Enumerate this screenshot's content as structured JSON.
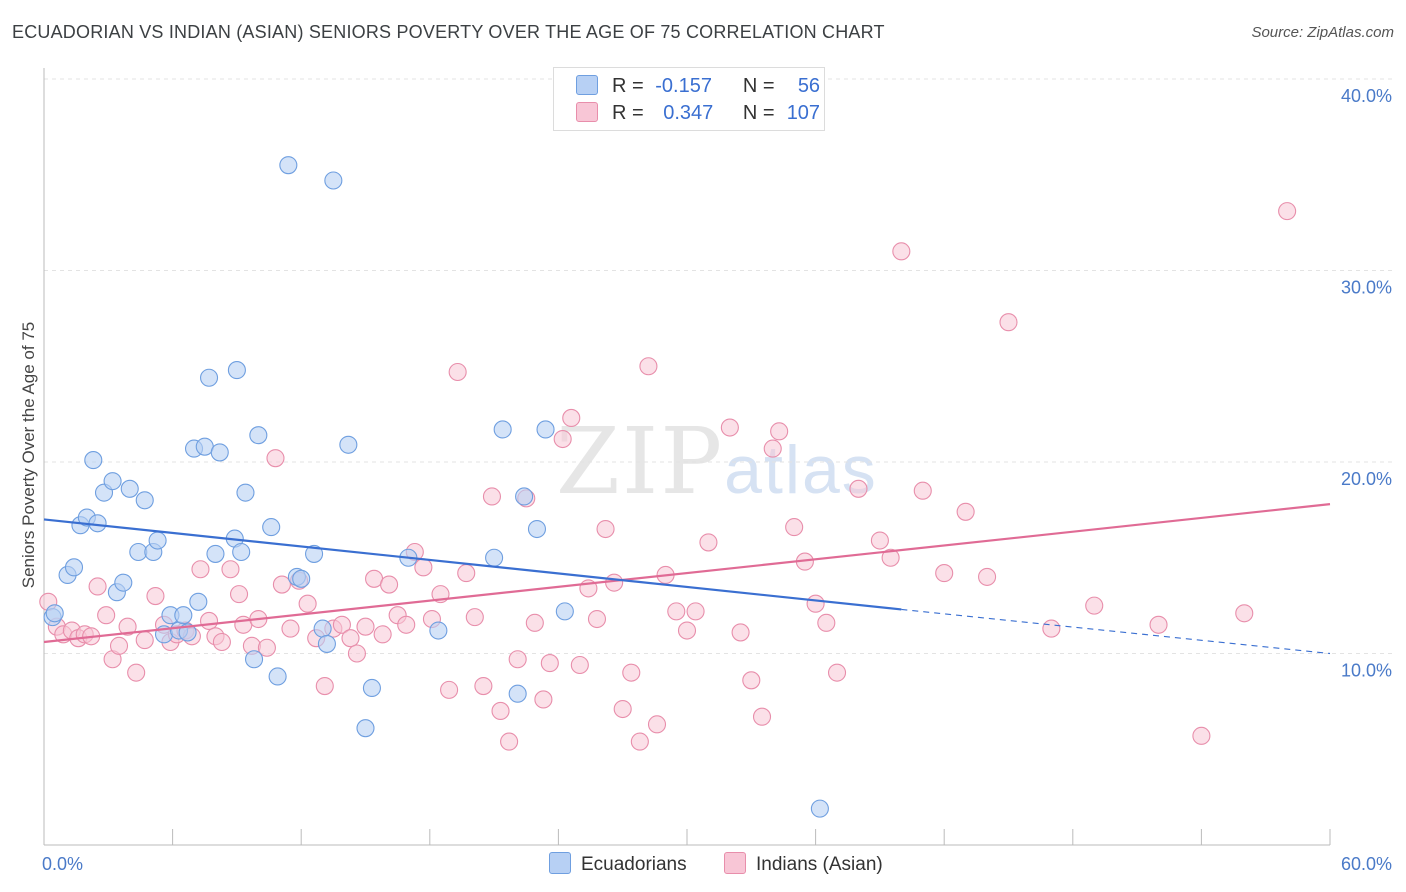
{
  "title": "ECUADORIAN VS INDIAN (ASIAN) SENIORS POVERTY OVER THE AGE OF 75 CORRELATION CHART",
  "source": "Source: ZipAtlas.com",
  "watermark": {
    "zip": "ZIP",
    "atlas": "atlas"
  },
  "legend": {
    "rows": [
      {
        "r_label": "R =",
        "r_value": "-0.157",
        "n_label": "N =",
        "n_value": "56"
      },
      {
        "r_label": "R =",
        "r_value": "0.347",
        "n_label": "N =",
        "n_value": "107"
      }
    ]
  },
  "bottom_legend": [
    "Ecuadorians",
    "Indians (Asian)"
  ],
  "colors": {
    "ecuadorian_fill": "#b7d0f4",
    "ecuadorian_stroke": "#6f9fe0",
    "ecuadorian_line": "#3a6fd1",
    "indian_fill": "#f8c6d6",
    "indian_stroke": "#e88eab",
    "indian_line": "#e06b95",
    "tick": "#4a7ac8"
  },
  "chart_data": {
    "type": "scatter",
    "title": "ECUADORIAN VS INDIAN (ASIAN) SENIORS POVERTY OVER THE AGE OF 75 CORRELATION CHART",
    "xlabel": "",
    "ylabel": "Seniors Poverty Over the Age of 75",
    "xlim": [
      0,
      60
    ],
    "ylim": [
      0,
      40
    ],
    "x_tick_labels": [
      "0.0%",
      "60.0%"
    ],
    "y_ticks": [
      10,
      20,
      30,
      40
    ],
    "y_tick_labels": [
      "10.0%",
      "20.0%",
      "30.0%",
      "40.0%"
    ],
    "grid": "horizontal dashed",
    "legend_placement": "top-center",
    "series": [
      {
        "name": "Ecuadorians",
        "r": -0.157,
        "n": 56,
        "trend": {
          "x": [
            0,
            40
          ],
          "y": [
            17.0,
            12.3
          ]
        },
        "trend_extension": {
          "x": [
            40,
            60
          ],
          "y": [
            12.3,
            10.0
          ]
        },
        "points": [
          [
            0.4,
            11.9
          ],
          [
            0.5,
            12.1
          ],
          [
            1.1,
            14.1
          ],
          [
            1.4,
            14.5
          ],
          [
            1.7,
            16.7
          ],
          [
            2.0,
            17.1
          ],
          [
            2.3,
            20.1
          ],
          [
            2.5,
            16.8
          ],
          [
            2.8,
            18.4
          ],
          [
            3.2,
            19.0
          ],
          [
            3.4,
            13.2
          ],
          [
            3.7,
            13.7
          ],
          [
            4.0,
            18.6
          ],
          [
            4.4,
            15.3
          ],
          [
            4.7,
            18.0
          ],
          [
            5.1,
            15.3
          ],
          [
            5.3,
            15.9
          ],
          [
            5.6,
            11.0
          ],
          [
            5.9,
            12.0
          ],
          [
            6.3,
            11.2
          ],
          [
            6.5,
            12.0
          ],
          [
            6.7,
            11.1
          ],
          [
            7.0,
            20.7
          ],
          [
            7.2,
            12.7
          ],
          [
            7.5,
            20.8
          ],
          [
            7.7,
            24.4
          ],
          [
            8.0,
            15.2
          ],
          [
            8.2,
            20.5
          ],
          [
            8.9,
            16.0
          ],
          [
            9.0,
            24.8
          ],
          [
            9.2,
            15.3
          ],
          [
            9.4,
            18.4
          ],
          [
            9.8,
            9.7
          ],
          [
            10.0,
            21.4
          ],
          [
            10.6,
            16.6
          ],
          [
            10.9,
            8.8
          ],
          [
            11.4,
            35.5
          ],
          [
            11.8,
            14.0
          ],
          [
            12.0,
            13.9
          ],
          [
            12.6,
            15.2
          ],
          [
            13.0,
            11.3
          ],
          [
            13.2,
            10.5
          ],
          [
            13.5,
            34.7
          ],
          [
            14.2,
            20.9
          ],
          [
            15.0,
            6.1
          ],
          [
            15.3,
            8.2
          ],
          [
            17.0,
            15.0
          ],
          [
            18.4,
            11.2
          ],
          [
            21.0,
            15.0
          ],
          [
            21.4,
            21.7
          ],
          [
            22.1,
            7.9
          ],
          [
            22.4,
            18.2
          ],
          [
            23.0,
            16.5
          ],
          [
            23.4,
            21.7
          ],
          [
            24.3,
            12.2
          ],
          [
            36.2,
            1.9
          ]
        ]
      },
      {
        "name": "Indians (Asian)",
        "r": 0.347,
        "n": 107,
        "trend": {
          "x": [
            0,
            60
          ],
          "y": [
            10.6,
            17.8
          ]
        },
        "points": [
          [
            0.2,
            12.7
          ],
          [
            0.6,
            11.4
          ],
          [
            0.9,
            11.0
          ],
          [
            1.3,
            11.2
          ],
          [
            1.6,
            10.8
          ],
          [
            1.9,
            11.0
          ],
          [
            2.2,
            10.9
          ],
          [
            2.5,
            13.5
          ],
          [
            2.9,
            12.0
          ],
          [
            3.2,
            9.7
          ],
          [
            3.5,
            10.4
          ],
          [
            3.9,
            11.4
          ],
          [
            4.3,
            9.0
          ],
          [
            4.7,
            10.7
          ],
          [
            5.2,
            13.0
          ],
          [
            5.6,
            11.5
          ],
          [
            5.9,
            10.6
          ],
          [
            6.2,
            11.0
          ],
          [
            6.6,
            11.2
          ],
          [
            6.9,
            10.9
          ],
          [
            7.3,
            14.4
          ],
          [
            7.7,
            11.7
          ],
          [
            8.0,
            10.9
          ],
          [
            8.3,
            10.6
          ],
          [
            8.7,
            14.4
          ],
          [
            9.1,
            13.1
          ],
          [
            9.3,
            11.5
          ],
          [
            9.7,
            10.4
          ],
          [
            10.0,
            11.8
          ],
          [
            10.4,
            10.3
          ],
          [
            10.8,
            20.2
          ],
          [
            11.1,
            13.6
          ],
          [
            11.5,
            11.3
          ],
          [
            11.9,
            13.8
          ],
          [
            12.3,
            12.6
          ],
          [
            12.7,
            10.8
          ],
          [
            13.1,
            8.3
          ],
          [
            13.5,
            11.3
          ],
          [
            13.9,
            11.5
          ],
          [
            14.3,
            10.8
          ],
          [
            14.6,
            10.0
          ],
          [
            15.0,
            11.4
          ],
          [
            15.4,
            13.9
          ],
          [
            15.8,
            11.0
          ],
          [
            16.1,
            13.6
          ],
          [
            16.5,
            12.0
          ],
          [
            16.9,
            11.5
          ],
          [
            17.3,
            15.3
          ],
          [
            17.7,
            14.5
          ],
          [
            18.1,
            11.8
          ],
          [
            18.5,
            13.1
          ],
          [
            18.9,
            8.1
          ],
          [
            19.3,
            24.7
          ],
          [
            19.7,
            14.2
          ],
          [
            20.1,
            11.9
          ],
          [
            20.5,
            8.3
          ],
          [
            20.9,
            18.2
          ],
          [
            21.3,
            7.0
          ],
          [
            21.7,
            5.4
          ],
          [
            22.1,
            9.7
          ],
          [
            22.5,
            18.1
          ],
          [
            22.9,
            11.6
          ],
          [
            23.3,
            7.6
          ],
          [
            23.6,
            9.5
          ],
          [
            24.2,
            21.2
          ],
          [
            24.6,
            22.3
          ],
          [
            25.0,
            9.4
          ],
          [
            25.4,
            13.4
          ],
          [
            25.8,
            11.8
          ],
          [
            26.2,
            16.5
          ],
          [
            26.6,
            13.7
          ],
          [
            27.0,
            7.1
          ],
          [
            27.4,
            9.0
          ],
          [
            27.8,
            5.4
          ],
          [
            28.2,
            25.0
          ],
          [
            28.6,
            6.3
          ],
          [
            29.0,
            14.1
          ],
          [
            29.5,
            12.2
          ],
          [
            30.0,
            11.2
          ],
          [
            30.4,
            12.2
          ],
          [
            31.0,
            15.8
          ],
          [
            32.0,
            21.8
          ],
          [
            32.5,
            11.1
          ],
          [
            33.0,
            8.6
          ],
          [
            33.5,
            6.7
          ],
          [
            34.0,
            20.7
          ],
          [
            34.3,
            21.6
          ],
          [
            35.0,
            16.6
          ],
          [
            35.5,
            14.8
          ],
          [
            36.0,
            12.6
          ],
          [
            36.5,
            11.6
          ],
          [
            37.0,
            9.0
          ],
          [
            38.0,
            18.6
          ],
          [
            39.0,
            15.9
          ],
          [
            39.5,
            15.0
          ],
          [
            40.0,
            31.0
          ],
          [
            41.0,
            18.5
          ],
          [
            42.0,
            14.2
          ],
          [
            43.0,
            17.4
          ],
          [
            44.0,
            14.0
          ],
          [
            45.0,
            27.3
          ],
          [
            47.0,
            11.3
          ],
          [
            49.0,
            12.5
          ],
          [
            52.0,
            11.5
          ],
          [
            54.0,
            5.7
          ],
          [
            56.0,
            12.1
          ],
          [
            58.0,
            33.1
          ]
        ]
      }
    ]
  }
}
